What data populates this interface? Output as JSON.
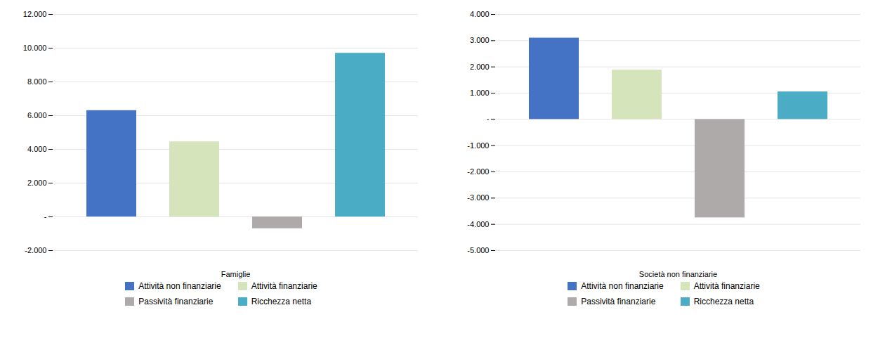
{
  "chart_data": [
    {
      "type": "bar",
      "xlabel": "Famiglie",
      "categories": [
        "Attività non finanziarie",
        "Attività finanziarie",
        "Passività finanziarie",
        "Ricchezza netta"
      ],
      "values": [
        6300,
        4450,
        -700,
        9700
      ],
      "colors": [
        "#4472C4",
        "#D6E4BC",
        "#AEAAAA",
        "#4BACC6"
      ],
      "ylim": [
        -2000,
        12000
      ],
      "yticks": [
        {
          "value": -2000,
          "label": "-2.000"
        },
        {
          "value": 0,
          "label": "-"
        },
        {
          "value": 2000,
          "label": "2.000"
        },
        {
          "value": 4000,
          "label": "4.000"
        },
        {
          "value": 6000,
          "label": "6.000"
        },
        {
          "value": 8000,
          "label": "8.000"
        },
        {
          "value": 10000,
          "label": "10.000"
        },
        {
          "value": 12000,
          "label": "12.000"
        }
      ],
      "grid": true,
      "legend": "bottom",
      "tick_labels": "y"
    },
    {
      "type": "bar",
      "xlabel": "Società non finanziarie",
      "categories": [
        "Attività non finanziarie",
        "Attività finanziarie",
        "Passività finanziarie",
        "Ricchezza netta"
      ],
      "values": [
        3100,
        1880,
        -3750,
        1050
      ],
      "colors": [
        "#4472C4",
        "#D6E4BC",
        "#AEAAAA",
        "#4BACC6"
      ],
      "ylim": [
        -5000,
        4000
      ],
      "yticks": [
        {
          "value": -5000,
          "label": "-5.000"
        },
        {
          "value": -4000,
          "label": "-4.000"
        },
        {
          "value": -3000,
          "label": "-3.000"
        },
        {
          "value": -2000,
          "label": "-2.000"
        },
        {
          "value": -1000,
          "label": "-1.000"
        },
        {
          "value": 0,
          "label": "-"
        },
        {
          "value": 1000,
          "label": "1.000"
        },
        {
          "value": 2000,
          "label": "2.000"
        },
        {
          "value": 3000,
          "label": "3.000"
        },
        {
          "value": 4000,
          "label": "4.000"
        }
      ],
      "grid": true,
      "legend": "bottom",
      "tick_labels": "y"
    }
  ]
}
